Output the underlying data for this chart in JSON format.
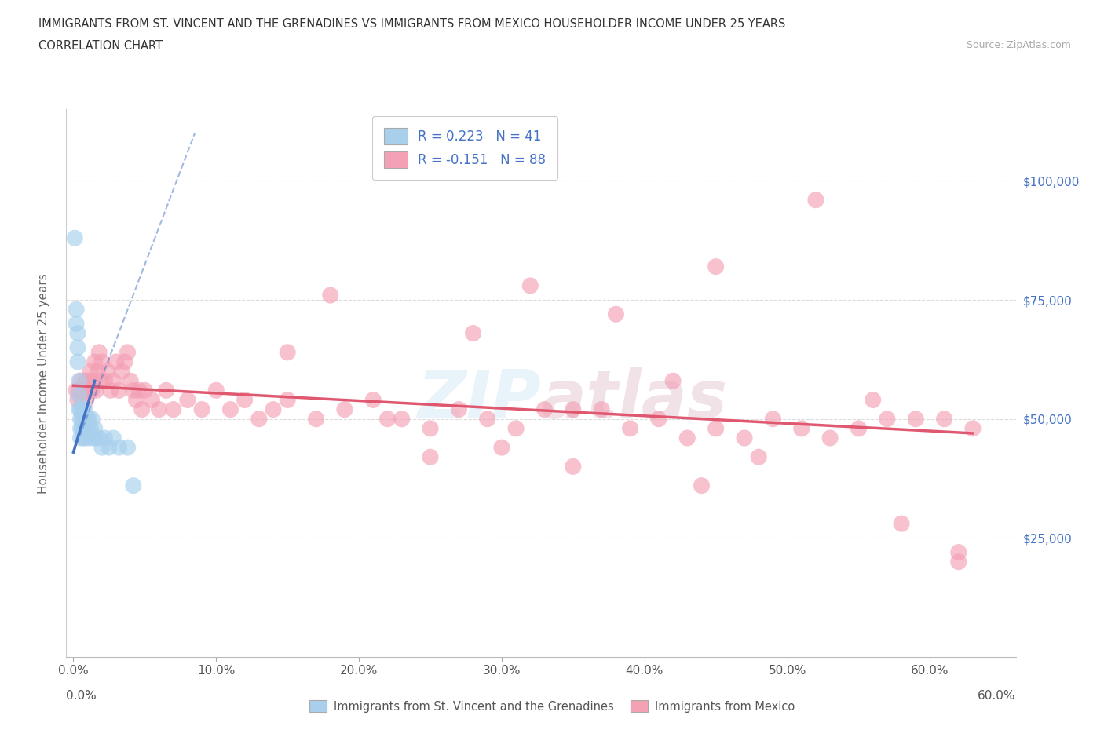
{
  "title_line1": "IMMIGRANTS FROM ST. VINCENT AND THE GRENADINES VS IMMIGRANTS FROM MEXICO HOUSEHOLDER INCOME UNDER 25 YEARS",
  "title_line2": "CORRELATION CHART",
  "source_text": "Source: ZipAtlas.com",
  "ylabel": "Householder Income Under 25 years",
  "xlim_min": -0.005,
  "xlim_max": 0.66,
  "ylim_min": 0,
  "ylim_max": 115000,
  "xticks": [
    0.0,
    0.1,
    0.2,
    0.3,
    0.4,
    0.5,
    0.6
  ],
  "xticklabels": [
    "0.0%",
    "10.0%",
    "20.0%",
    "30.0%",
    "40.0%",
    "50.0%",
    "60.0%"
  ],
  "yticks": [
    25000,
    50000,
    75000,
    100000
  ],
  "yticklabels": [
    "$25,000",
    "$50,000",
    "$75,000",
    "$100,000"
  ],
  "color_blue": "#A8D0ED",
  "color_pink": "#F4A0B5",
  "line_blue": "#4472C4",
  "line_pink": "#E05870",
  "legend_text1": "R = 0.223   N = 41",
  "legend_text2": "R = -0.151   N = 88",
  "watermark": "ZIPAtlas",
  "label_blue": "Immigrants from St. Vincent and the Grenadines",
  "label_pink": "Immigrants from Mexico",
  "blue_x": [
    0.001,
    0.002,
    0.002,
    0.003,
    0.003,
    0.003,
    0.004,
    0.004,
    0.004,
    0.005,
    0.005,
    0.005,
    0.005,
    0.006,
    0.006,
    0.006,
    0.007,
    0.007,
    0.007,
    0.008,
    0.008,
    0.008,
    0.009,
    0.009,
    0.01,
    0.01,
    0.011,
    0.011,
    0.012,
    0.013,
    0.014,
    0.015,
    0.016,
    0.018,
    0.02,
    0.022,
    0.025,
    0.028,
    0.032,
    0.038,
    0.042
  ],
  "blue_y": [
    88000,
    73000,
    70000,
    68000,
    65000,
    62000,
    58000,
    55000,
    52000,
    52000,
    50000,
    48000,
    46000,
    52000,
    50000,
    48000,
    50000,
    48000,
    46000,
    52000,
    50000,
    46000,
    50000,
    48000,
    50000,
    48000,
    50000,
    46000,
    48000,
    50000,
    46000,
    48000,
    46000,
    46000,
    44000,
    46000,
    44000,
    46000,
    44000,
    44000,
    36000
  ],
  "pink_x": [
    0.002,
    0.003,
    0.004,
    0.005,
    0.006,
    0.007,
    0.008,
    0.009,
    0.01,
    0.011,
    0.012,
    0.013,
    0.014,
    0.015,
    0.016,
    0.017,
    0.018,
    0.019,
    0.02,
    0.022,
    0.024,
    0.026,
    0.028,
    0.03,
    0.032,
    0.034,
    0.036,
    0.038,
    0.04,
    0.042,
    0.044,
    0.046,
    0.048,
    0.05,
    0.055,
    0.06,
    0.065,
    0.07,
    0.08,
    0.09,
    0.1,
    0.11,
    0.12,
    0.13,
    0.14,
    0.15,
    0.17,
    0.19,
    0.21,
    0.23,
    0.25,
    0.27,
    0.29,
    0.31,
    0.33,
    0.35,
    0.37,
    0.39,
    0.41,
    0.43,
    0.45,
    0.47,
    0.49,
    0.51,
    0.53,
    0.55,
    0.57,
    0.59,
    0.61,
    0.63,
    0.32,
    0.45,
    0.52,
    0.28,
    0.38,
    0.18,
    0.42,
    0.56,
    0.3,
    0.22,
    0.48,
    0.62,
    0.35,
    0.25,
    0.58,
    0.15,
    0.44,
    0.62
  ],
  "pink_y": [
    56000,
    54000,
    56000,
    58000,
    54000,
    56000,
    58000,
    54000,
    58000,
    56000,
    60000,
    56000,
    58000,
    62000,
    56000,
    60000,
    64000,
    58000,
    62000,
    58000,
    60000,
    56000,
    58000,
    62000,
    56000,
    60000,
    62000,
    64000,
    58000,
    56000,
    54000,
    56000,
    52000,
    56000,
    54000,
    52000,
    56000,
    52000,
    54000,
    52000,
    56000,
    52000,
    54000,
    50000,
    52000,
    54000,
    50000,
    52000,
    54000,
    50000,
    48000,
    52000,
    50000,
    48000,
    52000,
    52000,
    52000,
    48000,
    50000,
    46000,
    48000,
    46000,
    50000,
    48000,
    46000,
    48000,
    50000,
    50000,
    50000,
    48000,
    78000,
    82000,
    96000,
    68000,
    72000,
    76000,
    58000,
    54000,
    44000,
    50000,
    42000,
    20000,
    40000,
    42000,
    28000,
    64000,
    36000,
    22000
  ],
  "pink_line_x0": 0.0,
  "pink_line_y0": 57000,
  "pink_line_x1": 0.63,
  "pink_line_y1": 47000,
  "blue_line_solid_x0": 0.0,
  "blue_line_solid_y0": 43000,
  "blue_line_solid_x1": 0.015,
  "blue_line_solid_y1": 58000,
  "blue_line_dash_x0": 0.0,
  "blue_line_dash_y0": 43000,
  "blue_line_dash_x1": 0.085,
  "blue_line_dash_y1": 110000
}
